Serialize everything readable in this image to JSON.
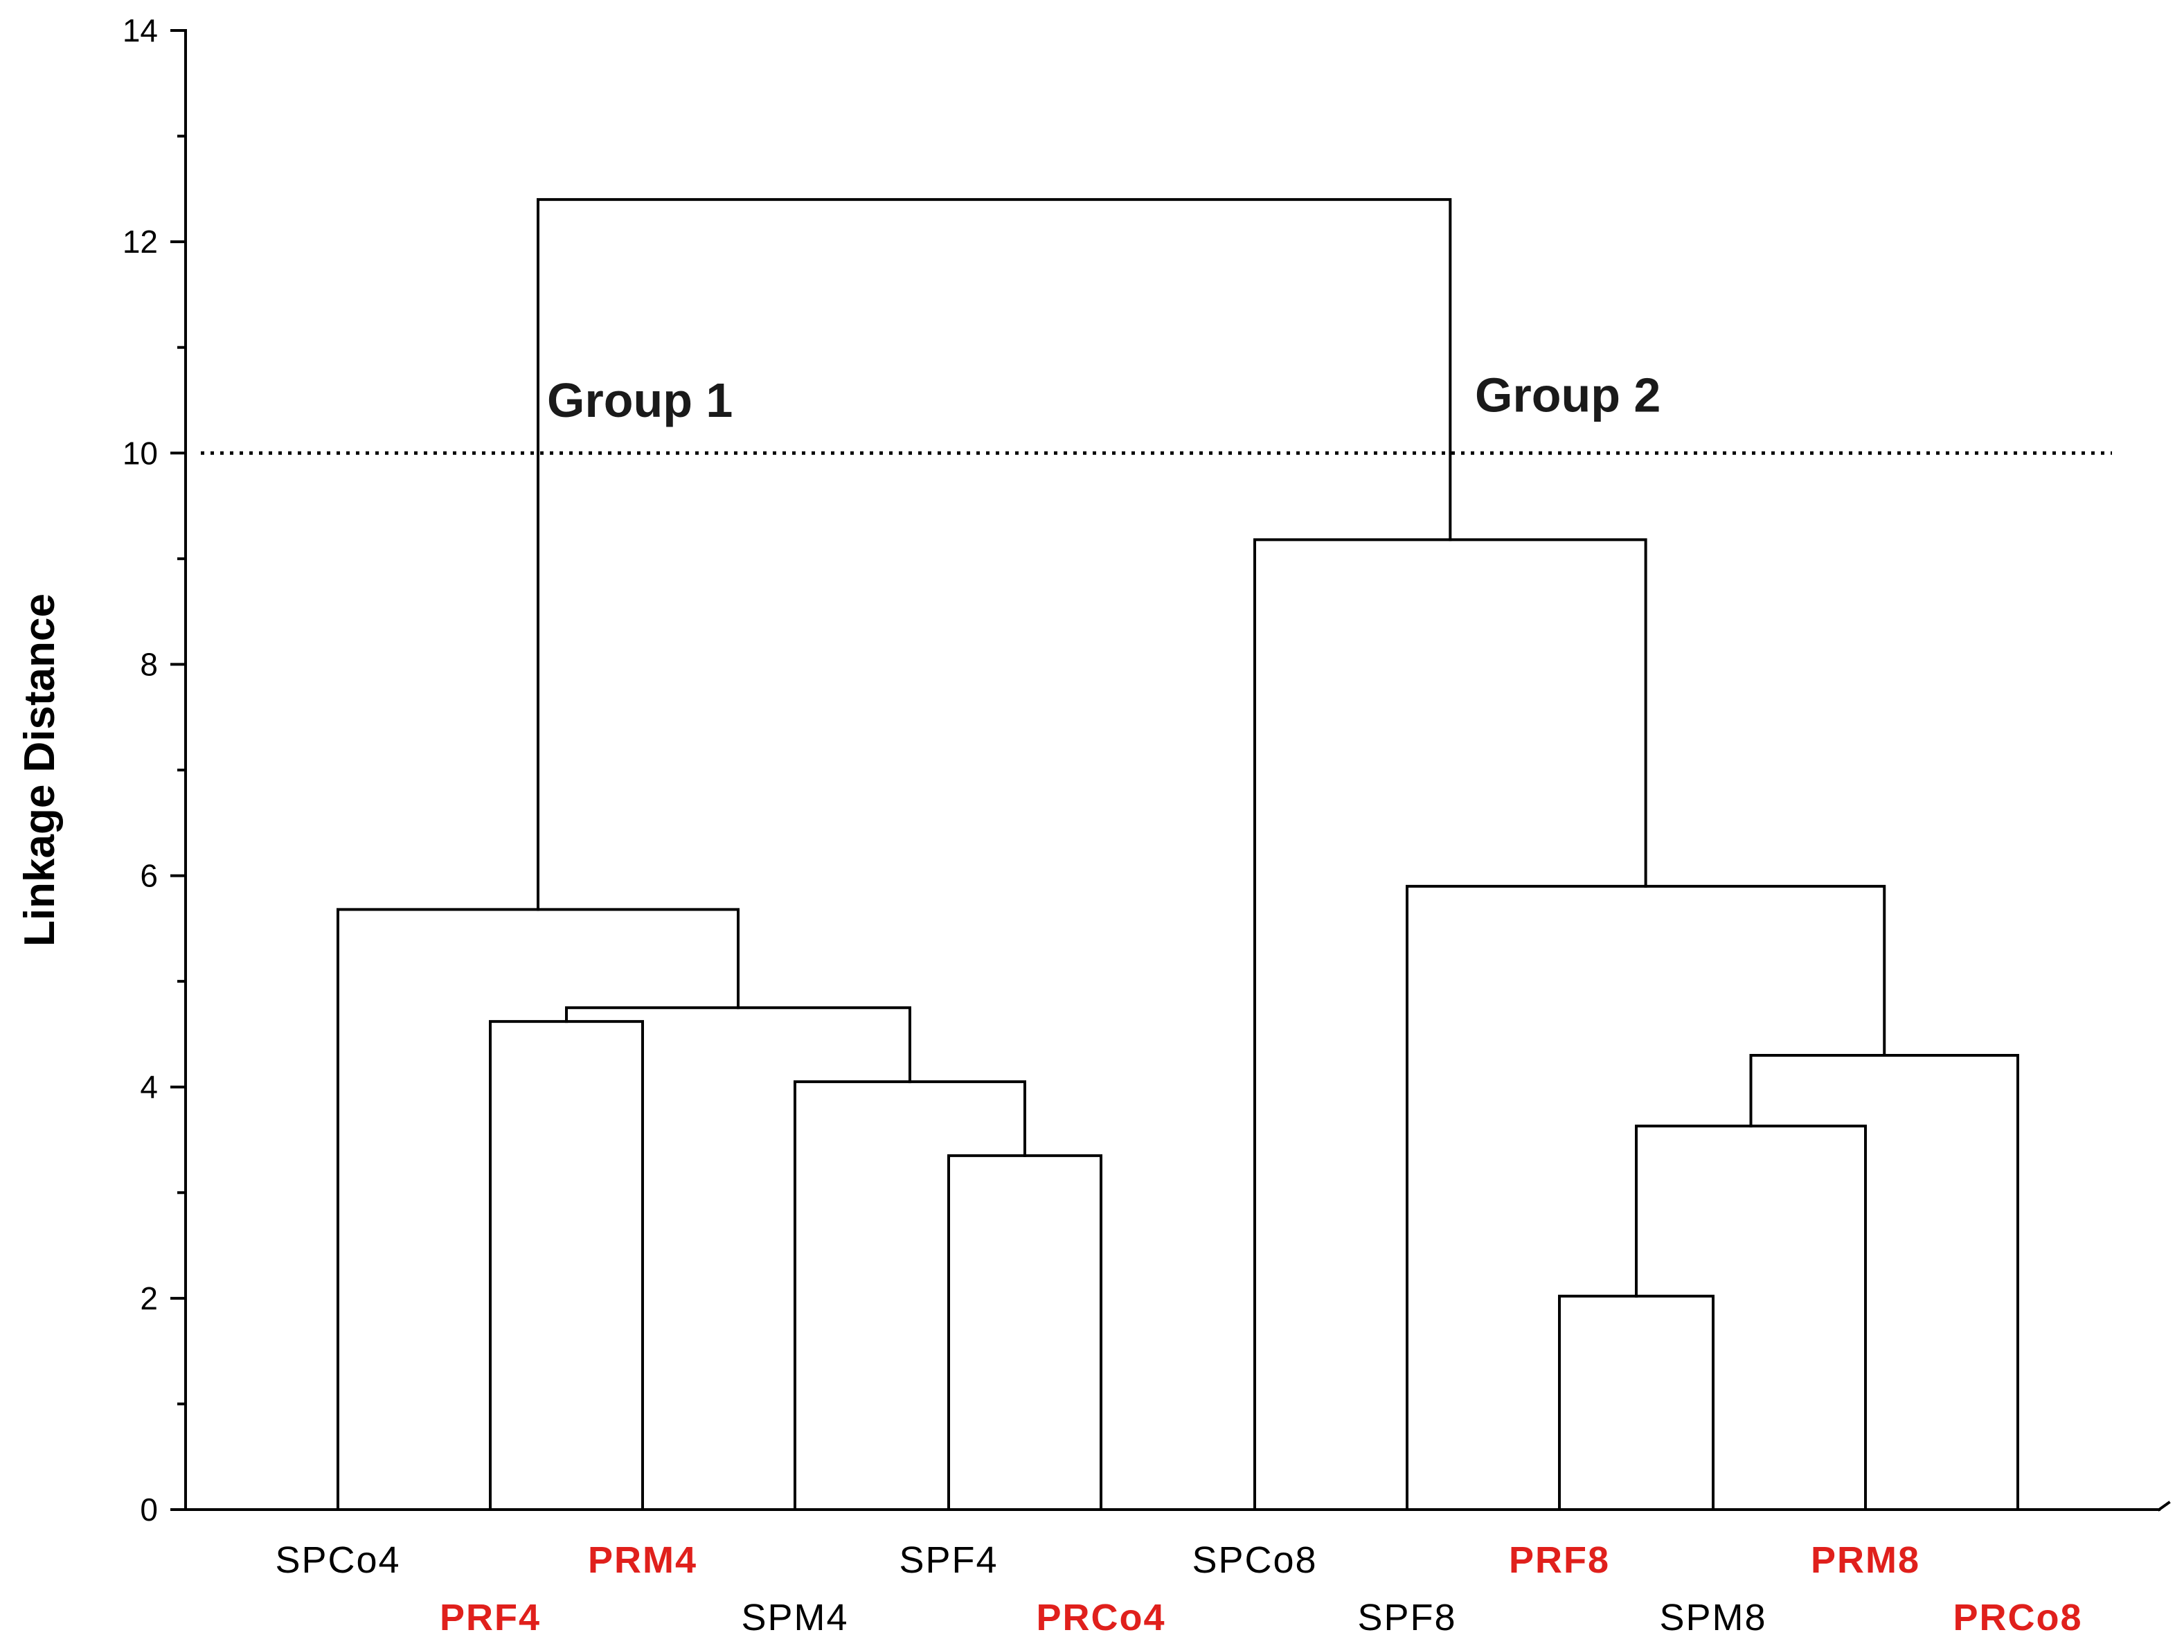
{
  "chart_data": {
    "type": "dendrogram",
    "ylabel": "Linkage Distance",
    "ylim": [
      0,
      14
    ],
    "yticks": [
      "0",
      "2",
      "4",
      "6",
      "8",
      "10",
      "12",
      "14"
    ],
    "threshold": 10,
    "colors": {
      "black": "#000000",
      "red": "#e0201c"
    },
    "leaves": [
      {
        "label": "SPCo4",
        "color": "#000000"
      },
      {
        "label": "PRF4",
        "color": "#e0201c"
      },
      {
        "label": "PRM4",
        "color": "#e0201c"
      },
      {
        "label": "SPM4",
        "color": "#000000"
      },
      {
        "label": "SPF4",
        "color": "#000000"
      },
      {
        "label": "PRCo4",
        "color": "#e0201c"
      },
      {
        "label": "SPCo8",
        "color": "#000000"
      },
      {
        "label": "SPF8",
        "color": "#000000"
      },
      {
        "label": "PRF8",
        "color": "#e0201c"
      },
      {
        "label": "SPM8",
        "color": "#000000"
      },
      {
        "label": "PRM8",
        "color": "#e0201c"
      },
      {
        "label": "PRCo8",
        "color": "#e0201c"
      }
    ],
    "merges": [
      {
        "left": "leaf:4",
        "right": "leaf:5",
        "height": 3.35
      },
      {
        "left": "leaf:3",
        "right": "node:0",
        "height": 4.05
      },
      {
        "left": "leaf:1",
        "right": "leaf:2",
        "height": 4.62
      },
      {
        "left": "node:2",
        "right": "node:1",
        "height": 4.75
      },
      {
        "left": "leaf:0",
        "right": "node:3",
        "height": 5.68
      },
      {
        "left": "leaf:8",
        "right": "leaf:9",
        "height": 2.02
      },
      {
        "left": "node:5",
        "right": "leaf:10",
        "height": 3.63
      },
      {
        "left": "node:6",
        "right": "leaf:11",
        "height": 4.3
      },
      {
        "left": "leaf:7",
        "right": "node:7",
        "height": 5.9
      },
      {
        "left": "leaf:6",
        "right": "node:8",
        "height": 9.18
      },
      {
        "left": "node:4",
        "right": "node:9",
        "height": 12.4
      }
    ],
    "groups": [
      {
        "label": "Group 1",
        "value": 10.5
      },
      {
        "label": "Group 2",
        "value": 10.55
      }
    ]
  }
}
